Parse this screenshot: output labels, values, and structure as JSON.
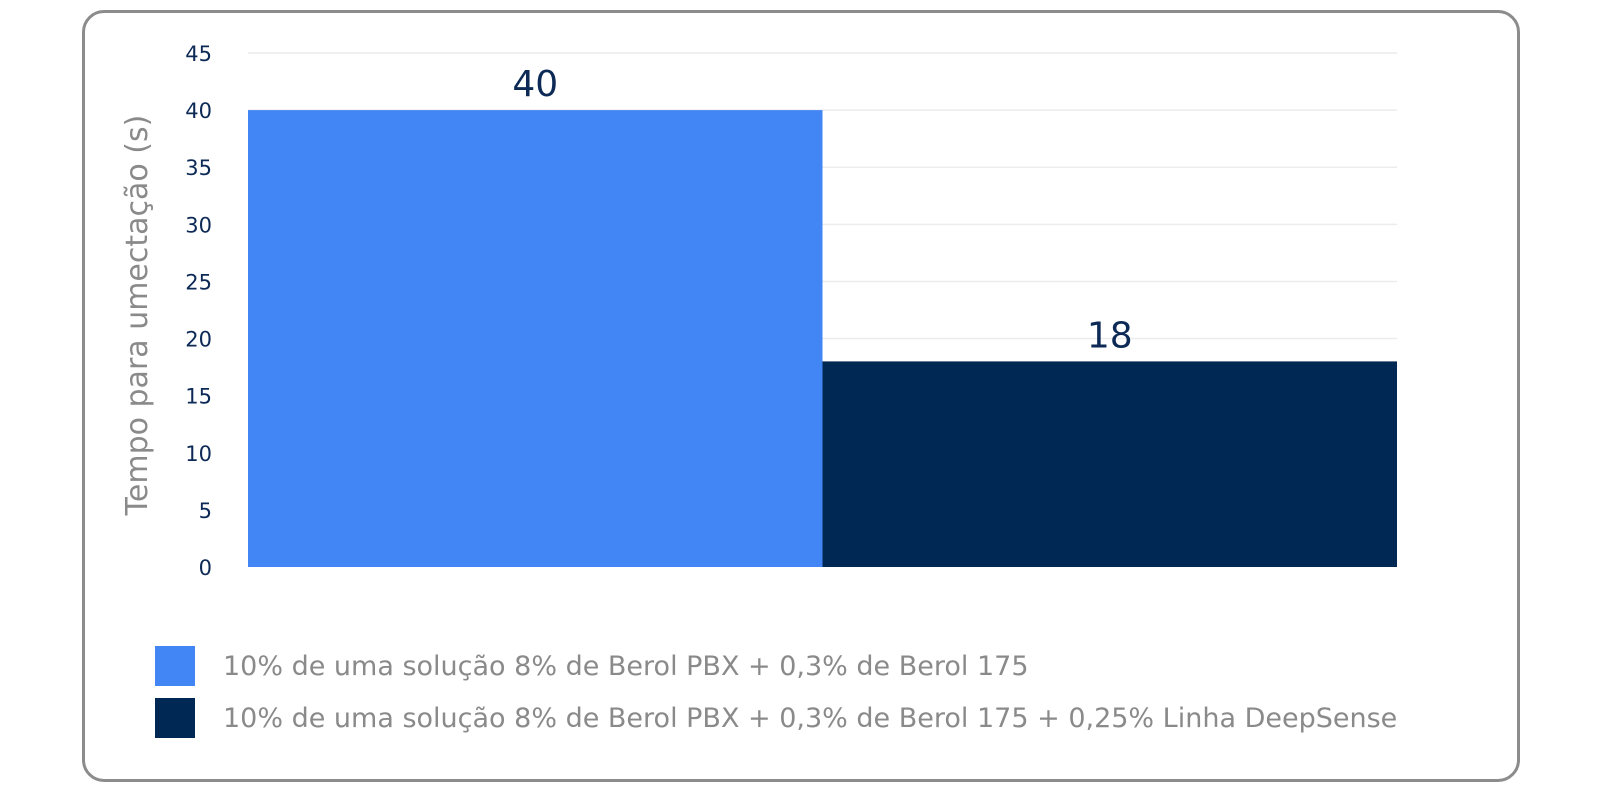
{
  "chart_data": {
    "type": "bar",
    "categories": [
      "10% de uma solução 8% de Berol PBX + 0,3% de Berol 175",
      "10% de uma solução 8% de Berol PBX + 0,3% de Berol 175 + 0,25% Linha DeepSense"
    ],
    "values": [
      40,
      18
    ],
    "data_labels": [
      "40",
      "18"
    ],
    "colors": [
      "#4285f4",
      "#002855"
    ],
    "ylabel": "Tempo para umectação (s)",
    "xlabel": "",
    "ylim": [
      0,
      45
    ],
    "yticks": [
      0,
      5,
      10,
      15,
      20,
      25,
      30,
      35,
      40,
      45
    ],
    "grid": true,
    "legend": "bottom"
  }
}
